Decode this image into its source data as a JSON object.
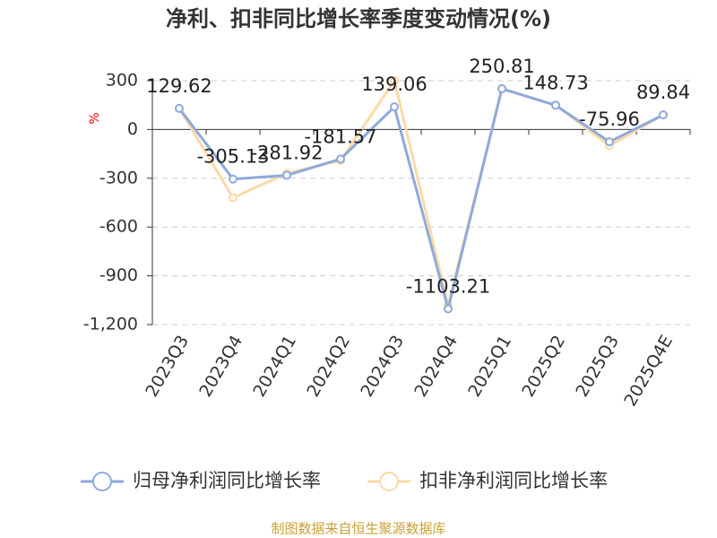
{
  "chart_data": {
    "type": "line",
    "title": "净利、扣非同比增长率季度变动情况(%)",
    "y_label": "%",
    "categories": [
      "2023Q3",
      "2023Q4",
      "2024Q1",
      "2024Q2",
      "2024Q3",
      "2024Q4",
      "2025Q1",
      "2025Q2",
      "2025Q3",
      "2025Q4E"
    ],
    "series": [
      {
        "name": "归母净利润同比增长率",
        "color": "#8eaadb",
        "values": [
          129.62,
          -305.13,
          -281.92,
          -181.57,
          139.06,
          -1103.21,
          250.81,
          148.73,
          -75.96,
          89.84
        ],
        "show_labels": true
      },
      {
        "name": "扣非净利润同比增长率",
        "color": "#fdd9a6",
        "values": [
          130,
          -420,
          -270,
          -190,
          300,
          -1080,
          250,
          150,
          -100,
          90
        ],
        "show_labels": false
      }
    ],
    "ylim": [
      -1200,
      300
    ],
    "yticks": [
      300,
      0,
      -300,
      -600,
      -900,
      {
        "value": -1200,
        "label": "-1,200"
      }
    ],
    "grid": true,
    "source": "制图数据来自恒生聚源数据库"
  }
}
